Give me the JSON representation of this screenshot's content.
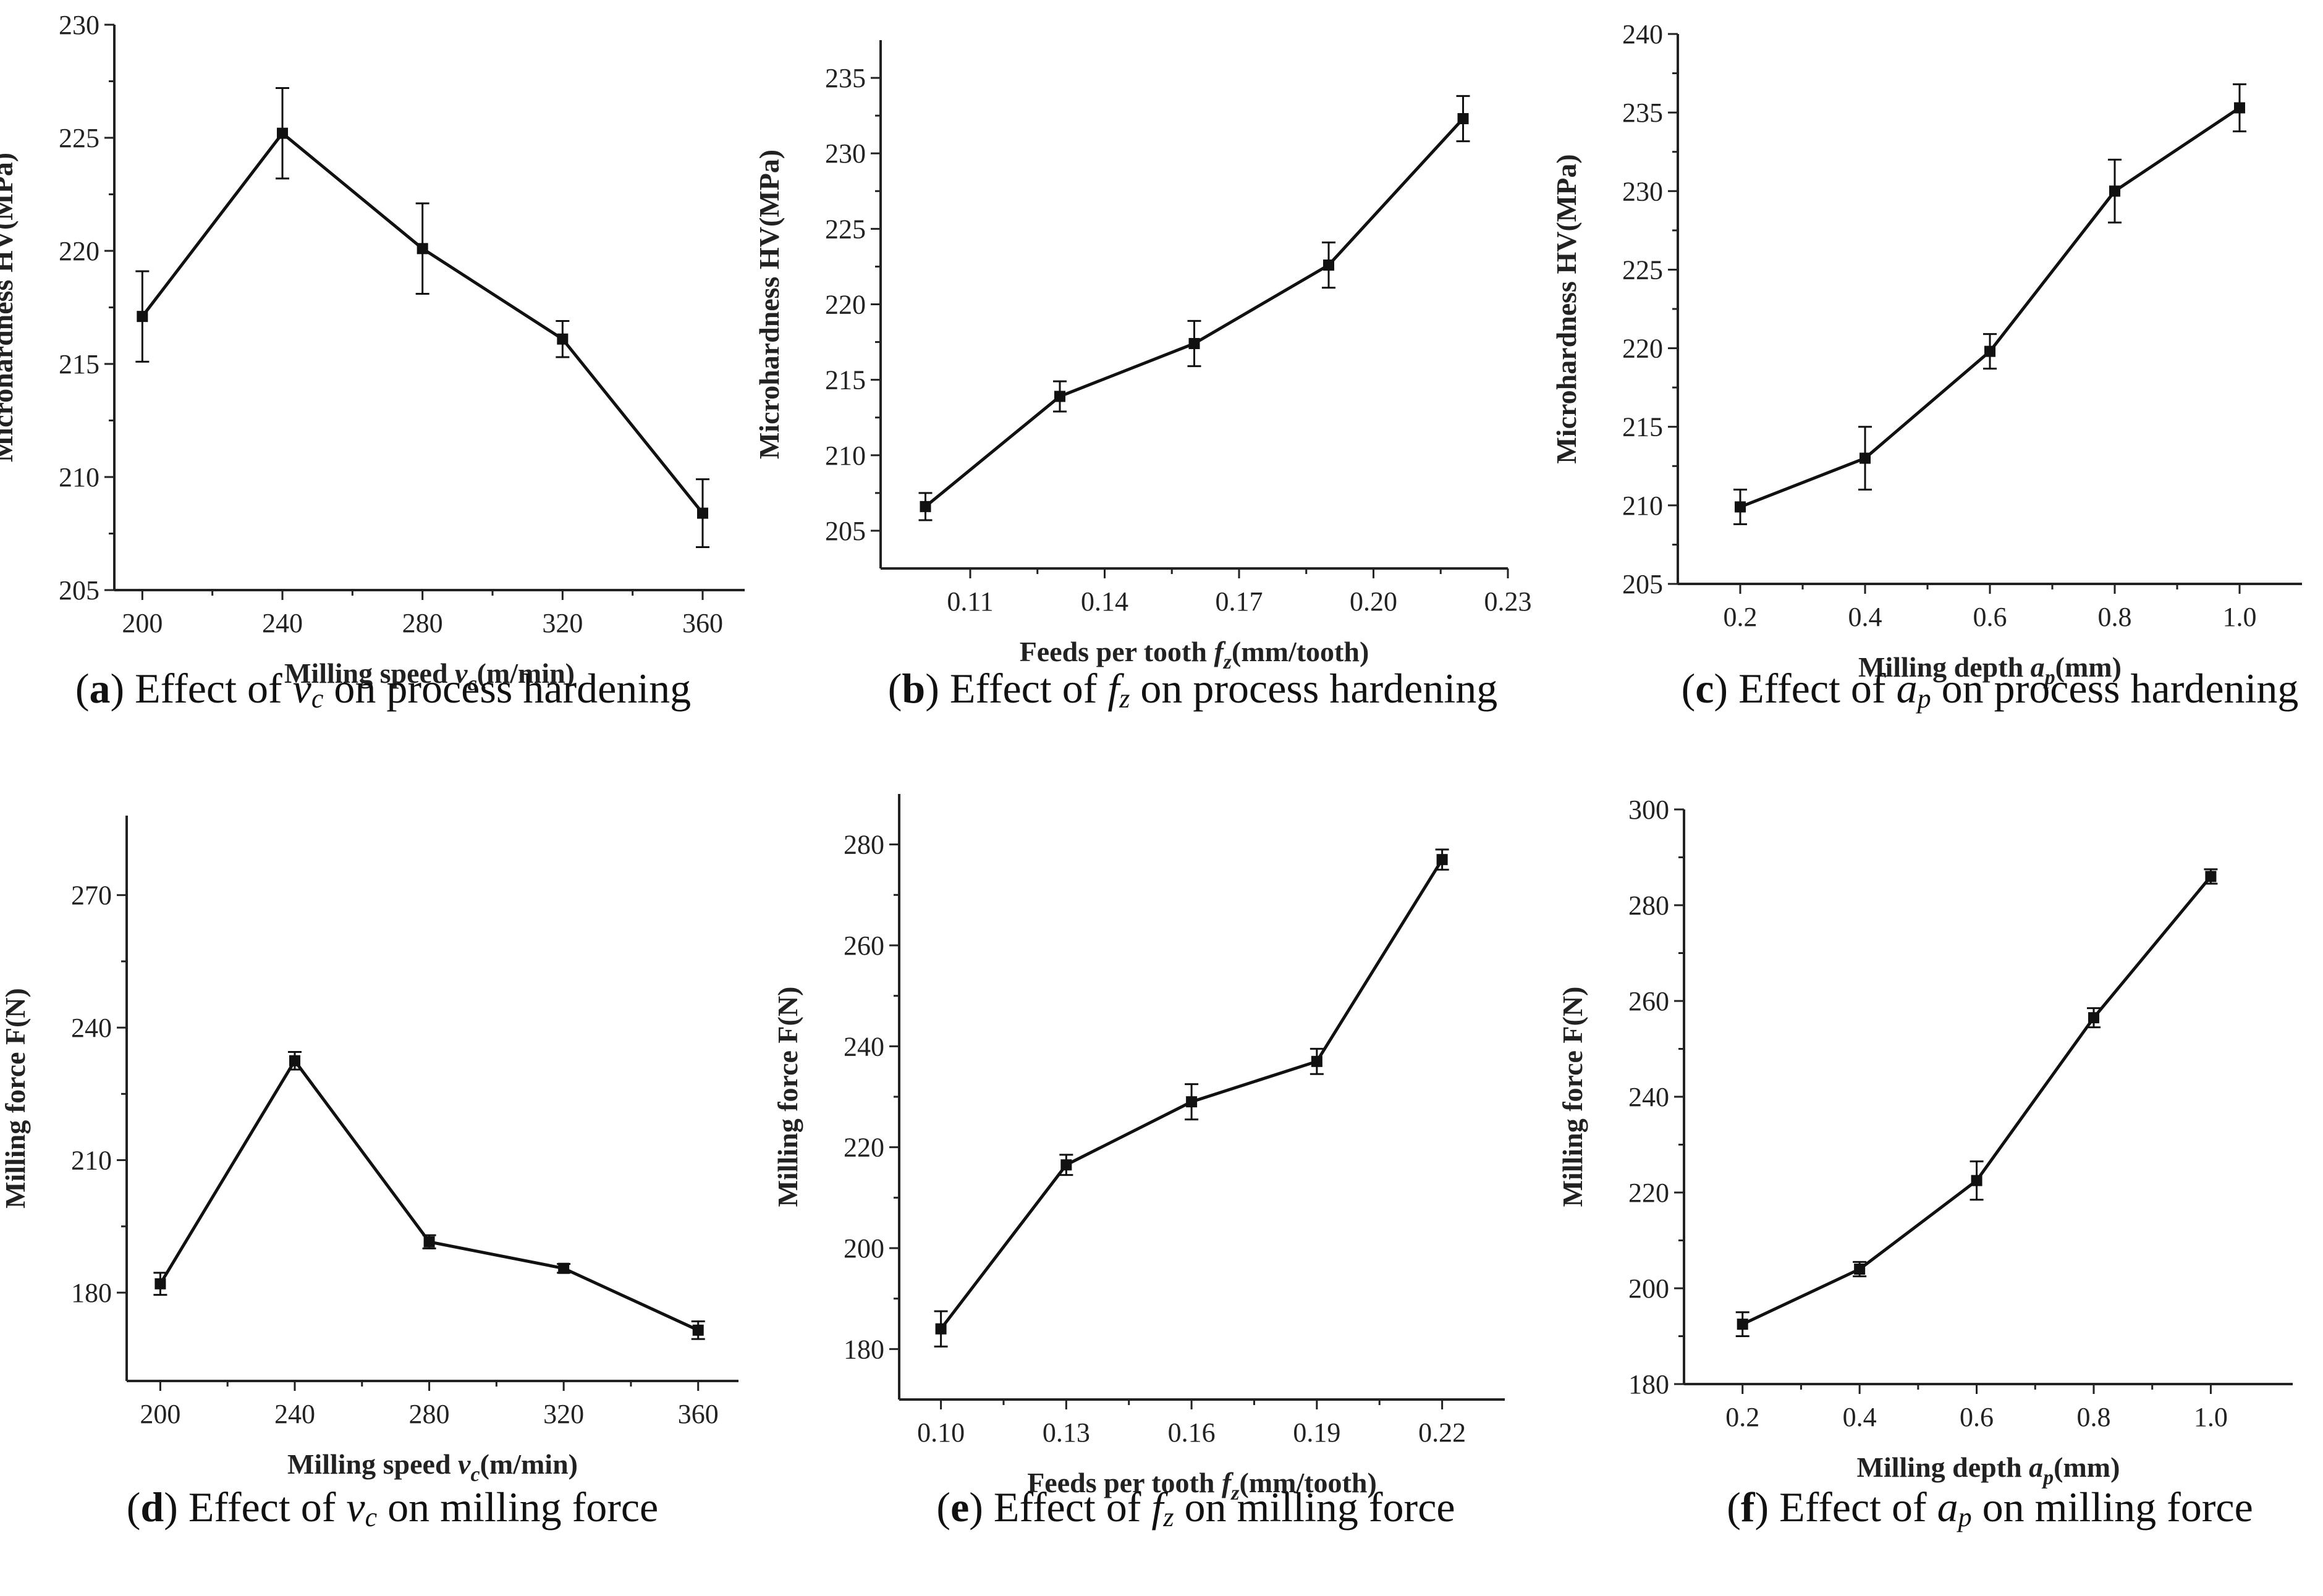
{
  "chart_data": [
    {
      "type": "line",
      "panel": "a",
      "caption": {
        "letter": "a",
        "before": "Effect of ",
        "var": "v",
        "sub": "c",
        "after": " on process hardening"
      },
      "ylabel": "Microhardness HV(MPa)",
      "xlabel": {
        "prefix": "Milling speed ",
        "var": "v",
        "sub": "c",
        "suffix": "(m/min)"
      },
      "x": [
        200,
        240,
        280,
        320,
        360
      ],
      "y": [
        217.1,
        225.2,
        220.1,
        216.1,
        208.4
      ],
      "err": [
        2.0,
        2.0,
        2.0,
        0.8,
        1.5
      ],
      "xlim": [
        192,
        372
      ],
      "ylim": [
        205,
        230
      ],
      "xticks": [
        "200",
        "240",
        "280",
        "320",
        "360"
      ],
      "yticks": [
        "205",
        "210",
        "215",
        "220",
        "225",
        "230"
      ]
    },
    {
      "type": "line",
      "panel": "b",
      "caption": {
        "letter": "b",
        "before": "Effect of ",
        "var": "f",
        "sub": "z",
        "after": " on process hardening"
      },
      "ylabel": "Microhardness HV(MPa)",
      "xlabel": {
        "prefix": "Feeds per tooth ",
        "var": "f",
        "sub": "z",
        "suffix": "(mm/tooth)"
      },
      "x": [
        0.1,
        0.13,
        0.16,
        0.19,
        0.22
      ],
      "y": [
        206.6,
        213.9,
        217.4,
        222.6,
        232.3
      ],
      "err": [
        0.9,
        1.0,
        1.5,
        1.5,
        1.5
      ],
      "xlim": [
        0.09,
        0.23
      ],
      "ylim": [
        202.5,
        237.5
      ],
      "xticks": [
        "0.11",
        "0.14",
        "0.17",
        "0.20",
        "0.23"
      ],
      "yticks": [
        "205",
        "210",
        "215",
        "220",
        "225",
        "230",
        "235"
      ]
    },
    {
      "type": "line",
      "panel": "c",
      "caption": {
        "letter": "c",
        "before": "Effect of ",
        "var": "a",
        "sub": "p",
        "after": " on process hardening"
      },
      "ylabel": "Microhardness HV(MPa)",
      "xlabel": {
        "prefix": "Milling depth ",
        "var": "a",
        "sub": "p",
        "suffix": "(mm)"
      },
      "x": [
        0.2,
        0.4,
        0.6,
        0.8,
        1.0
      ],
      "y": [
        209.9,
        213.0,
        219.8,
        230.0,
        235.3
      ],
      "err": [
        1.1,
        2.0,
        1.1,
        2.0,
        1.5
      ],
      "xlim": [
        0.1,
        1.1
      ],
      "ylim": [
        205,
        240
      ],
      "xticks": [
        "0.2",
        "0.4",
        "0.6",
        "0.8",
        "1.0"
      ],
      "yticks": [
        "205",
        "210",
        "215",
        "220",
        "225",
        "230",
        "235",
        "240"
      ]
    },
    {
      "type": "line",
      "panel": "d",
      "caption": {
        "letter": "d",
        "before": "Effect of ",
        "var": "v",
        "sub": "c",
        "after": " on milling force"
      },
      "ylabel": "Milling force F(N)",
      "xlabel": {
        "prefix": "Milling speed ",
        "var": "v",
        "sub": "c",
        "suffix": "(m/min)"
      },
      "x": [
        200,
        240,
        280,
        320,
        360
      ],
      "y": [
        182.0,
        232.5,
        191.5,
        185.5,
        171.5
      ],
      "err": [
        2.5,
        2.0,
        1.5,
        1.0,
        2.0
      ],
      "xlim": [
        190,
        372
      ],
      "ylim": [
        160,
        288
      ],
      "xticks": [
        "200",
        "240",
        "280",
        "320",
        "360"
      ],
      "yticks": [
        "180",
        "210",
        "240",
        "270"
      ]
    },
    {
      "type": "line",
      "panel": "e",
      "caption": {
        "letter": "e",
        "before": "Effect of ",
        "var": "f",
        "sub": "z",
        "after": " on milling force"
      },
      "ylabel": "Milling force F(N)",
      "xlabel": {
        "prefix": "Feeds per tooth ",
        "var": "f",
        "sub": "z",
        "suffix": "(mm/tooth)"
      },
      "x": [
        0.1,
        0.13,
        0.16,
        0.19,
        0.22
      ],
      "y": [
        184.0,
        216.5,
        229.0,
        237.0,
        277.0
      ],
      "err": [
        3.5,
        2.0,
        3.5,
        2.5,
        2.0
      ],
      "xlim": [
        0.09,
        0.235
      ],
      "ylim": [
        170,
        290
      ],
      "xticks": [
        "0.10",
        "0.13",
        "0.16",
        "0.19",
        "0.22"
      ],
      "yticks": [
        "180",
        "200",
        "220",
        "240",
        "260",
        "280"
      ]
    },
    {
      "type": "line",
      "panel": "f",
      "caption": {
        "letter": "f",
        "before": "Effect of ",
        "var": "a",
        "sub": "p",
        "after": " on milling force"
      },
      "ylabel": "Milling force F(N)",
      "xlabel": {
        "prefix": "Milling depth ",
        "var": "a",
        "sub": "p",
        "suffix": "(mm)"
      },
      "x": [
        0.2,
        0.4,
        0.6,
        0.8,
        1.0
      ],
      "y": [
        192.5,
        204.0,
        222.5,
        256.5,
        286.0
      ],
      "err": [
        2.5,
        1.5,
        4.0,
        2.0,
        1.5
      ],
      "xlim": [
        0.1,
        1.14
      ],
      "ylim": [
        180,
        300
      ],
      "xticks": [
        "0.2",
        "0.4",
        "0.6",
        "0.8",
        "1.0"
      ],
      "yticks": [
        "180",
        "200",
        "220",
        "240",
        "260",
        "280",
        "300"
      ]
    }
  ]
}
